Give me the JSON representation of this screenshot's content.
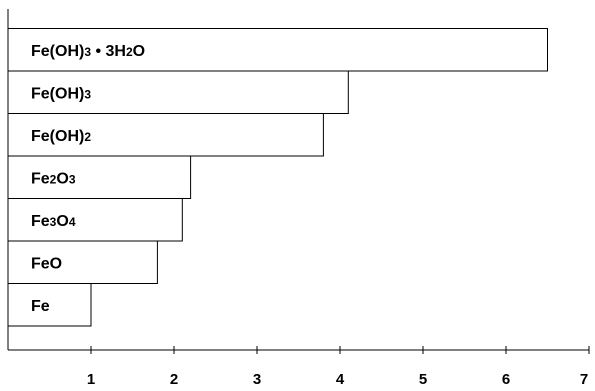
{
  "chart_data": {
    "type": "bar",
    "orientation": "horizontal",
    "categories": [
      {
        "label": [
          {
            "t": "Fe"
          }
        ]
      },
      {
        "label": [
          {
            "t": "Fe"
          },
          {
            "t": "O",
            "sub": false
          }
        ]
      },
      {
        "label": [
          {
            "t": "Fe"
          },
          {
            "t": "3",
            "sub": true
          },
          {
            "t": "O"
          },
          {
            "t": "4",
            "sub": true
          }
        ]
      },
      {
        "label": [
          {
            "t": "Fe"
          },
          {
            "t": "2",
            "sub": true
          },
          {
            "t": "O"
          },
          {
            "t": "3",
            "sub": true
          }
        ]
      },
      {
        "label": [
          {
            "t": "Fe(OH)"
          },
          {
            "t": "2",
            "sub": true
          }
        ]
      },
      {
        "label": [
          {
            "t": "Fe(OH)"
          },
          {
            "t": "3",
            "sub": true
          }
        ]
      },
      {
        "label": [
          {
            "t": "Fe(OH)"
          },
          {
            "t": "3",
            "sub": true
          },
          {
            "t": " • 3H"
          },
          {
            "t": "2",
            "sub": true
          },
          {
            "t": "O"
          }
        ]
      }
    ],
    "category_names": [
      "Fe",
      "FeO",
      "Fe3O4",
      "Fe2O3",
      "Fe(OH)2",
      "Fe(OH)3",
      "Fe(OH)3 • 3H2O"
    ],
    "values": [
      1.0,
      1.8,
      2.1,
      2.2,
      3.8,
      4.1,
      6.5
    ],
    "xlim": [
      0,
      7
    ],
    "xticks": [
      1,
      2,
      3,
      4,
      5,
      6,
      7
    ],
    "grid": false,
    "bar_fill": "#ffffff",
    "bar_stroke": "#000000"
  }
}
